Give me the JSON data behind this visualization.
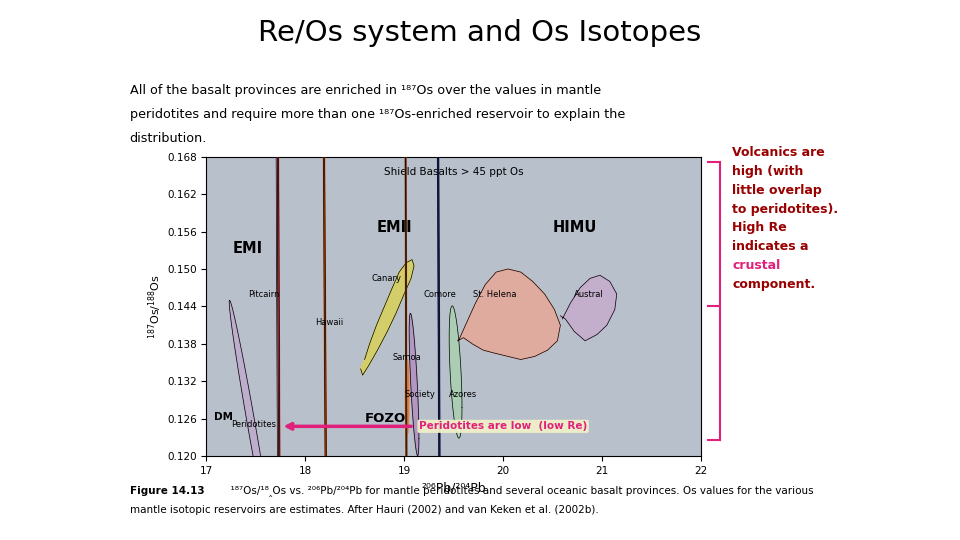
{
  "title": "Re/Os system and Os Isotopes",
  "subtitle_line1": "All of the basalt provinces are enriched in ¹⁸⁷Os over the values in mantle",
  "subtitle_line2": "peridotites and require more than one ¹⁸⁷Os-enriched reservoir to explain the",
  "subtitle_line3": "distribution.",
  "caption_bold": "Figure 14.13",
  "caption_rest1": "  ¹⁸⁷Os/¹⁸‸Os vs. ²⁰⁶Pb/²⁰⁴Pb for mantle peridotites and several oceanic basalt provinces. Os values for the various",
  "caption_rest2": "mantle isotopic reservoirs are estimates. After Hauri (2002) and van Keken et al. (2002b).",
  "xlabel": "²⁰⁶Pb/²⁰⁴Pb",
  "ylabel": "¹⁸⁷Os/¹‸⁸Os",
  "xlim": [
    17,
    22
  ],
  "ylim": [
    0.12,
    0.168
  ],
  "xticks": [
    17,
    18,
    19,
    20,
    21,
    22
  ],
  "yticks": [
    0.12,
    0.126,
    0.132,
    0.138,
    0.144,
    0.15,
    0.156,
    0.162,
    0.168
  ],
  "plot_bg": "#b8c0cc",
  "shield_basalts_label": "Shield Basalts > 45 ppt Os",
  "right_annotation_dark": "Volcanics are\nhigh (with\nlittle overlap\nto peridotites).\nHigh Re\nindicates a",
  "right_annotation_pink": "crustal",
  "right_annotation_end": "component.",
  "peridotites_label": "Peridotites are low  (low Re)",
  "fozo_label": "FOZO",
  "dm_label": "DM",
  "peridotites_small_label": "Peridotites",
  "emi_label": "EMI",
  "emii_label": "EMII",
  "himu_label": "HIMU",
  "bracket_color": "#e0207a",
  "text_color": "#990000",
  "pink_color": "#e0207a"
}
